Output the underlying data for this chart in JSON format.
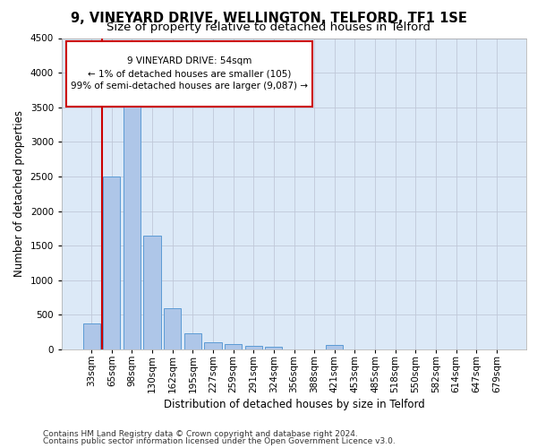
{
  "title_line1": "9, VINEYARD DRIVE, WELLINGTON, TELFORD, TF1 1SE",
  "title_line2": "Size of property relative to detached houses in Telford",
  "xlabel": "Distribution of detached houses by size in Telford",
  "ylabel": "Number of detached properties",
  "categories": [
    "33sqm",
    "65sqm",
    "98sqm",
    "130sqm",
    "162sqm",
    "195sqm",
    "227sqm",
    "259sqm",
    "291sqm",
    "324sqm",
    "356sqm",
    "388sqm",
    "421sqm",
    "453sqm",
    "485sqm",
    "518sqm",
    "550sqm",
    "582sqm",
    "614sqm",
    "647sqm",
    "679sqm"
  ],
  "values": [
    375,
    2500,
    3750,
    1650,
    600,
    230,
    110,
    75,
    55,
    40,
    0,
    0,
    65,
    0,
    0,
    0,
    0,
    0,
    0,
    0,
    0
  ],
  "bar_color": "#aec6e8",
  "bar_edge_color": "#5b9bd5",
  "annotation_text": "9 VINEYARD DRIVE: 54sqm\n← 1% of detached houses are smaller (105)\n99% of semi-detached houses are larger (9,087) →",
  "annotation_box_color": "#ffffff",
  "annotation_box_edge_color": "#cc0000",
  "property_line_color": "#cc0000",
  "ylim": [
    0,
    4500
  ],
  "yticks": [
    0,
    500,
    1000,
    1500,
    2000,
    2500,
    3000,
    3500,
    4000,
    4500
  ],
  "footer_line1": "Contains HM Land Registry data © Crown copyright and database right 2024.",
  "footer_line2": "Contains public sector information licensed under the Open Government Licence v3.0.",
  "background_color": "#ffffff",
  "plot_bg_color": "#dce9f7",
  "grid_color": "#c0c8d8",
  "title_fontsize": 10.5,
  "subtitle_fontsize": 9.5,
  "axis_label_fontsize": 8.5,
  "tick_fontsize": 7.5,
  "footer_fontsize": 6.5,
  "annotation_fontsize": 7.5
}
